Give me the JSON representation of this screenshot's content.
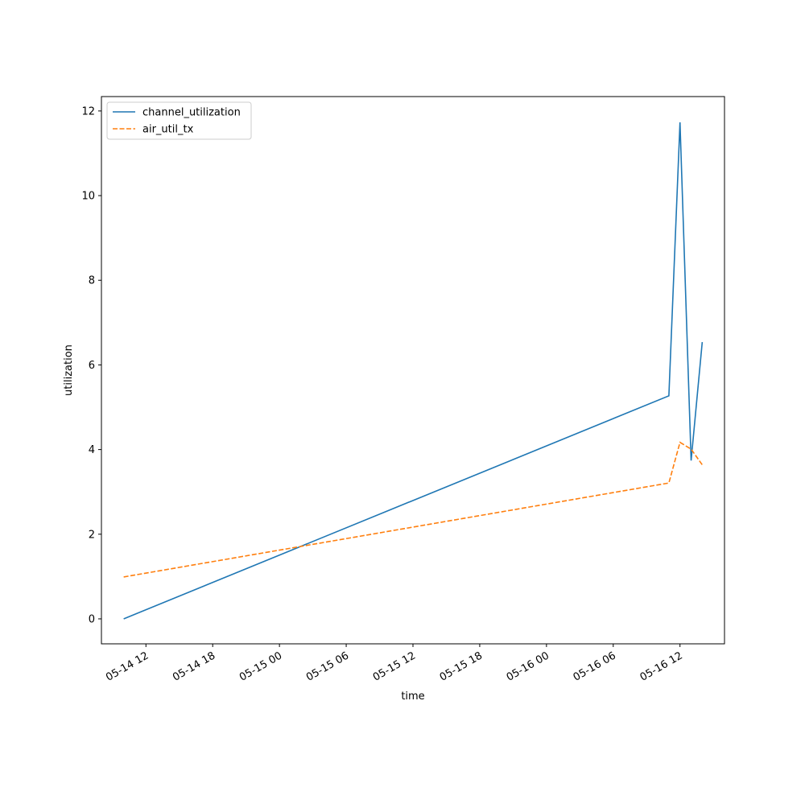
{
  "chart_data": {
    "type": "line",
    "x_label": "time",
    "y_label": "utilization",
    "x": [
      "05-14 10",
      "05-16 11",
      "05-16 12",
      "05-16 13",
      "05-16 14"
    ],
    "series": [
      {
        "name": "channel_utilization",
        "color": "#1f77b4",
        "dash": "solid",
        "values": [
          0,
          5.27,
          11.73,
          3.74,
          6.54
        ]
      },
      {
        "name": "air_util_tx",
        "color": "#ff7f0e",
        "dash": "dashed",
        "values": [
          0.99,
          3.21,
          4.17,
          4.01,
          3.64
        ]
      }
    ],
    "xlim": [
      "05-14 08",
      "05-16 16"
    ],
    "xticks": [
      "05-14 12",
      "05-14 18",
      "05-15 00",
      "05-15 06",
      "05-15 12",
      "05-15 18",
      "05-16 00",
      "05-16 06",
      "05-16 12"
    ],
    "ylim": [
      -0.59,
      12.34
    ],
    "yticks": [
      0,
      2,
      4,
      6,
      8,
      10,
      12
    ],
    "legend": "upper-left",
    "grid": false
  }
}
